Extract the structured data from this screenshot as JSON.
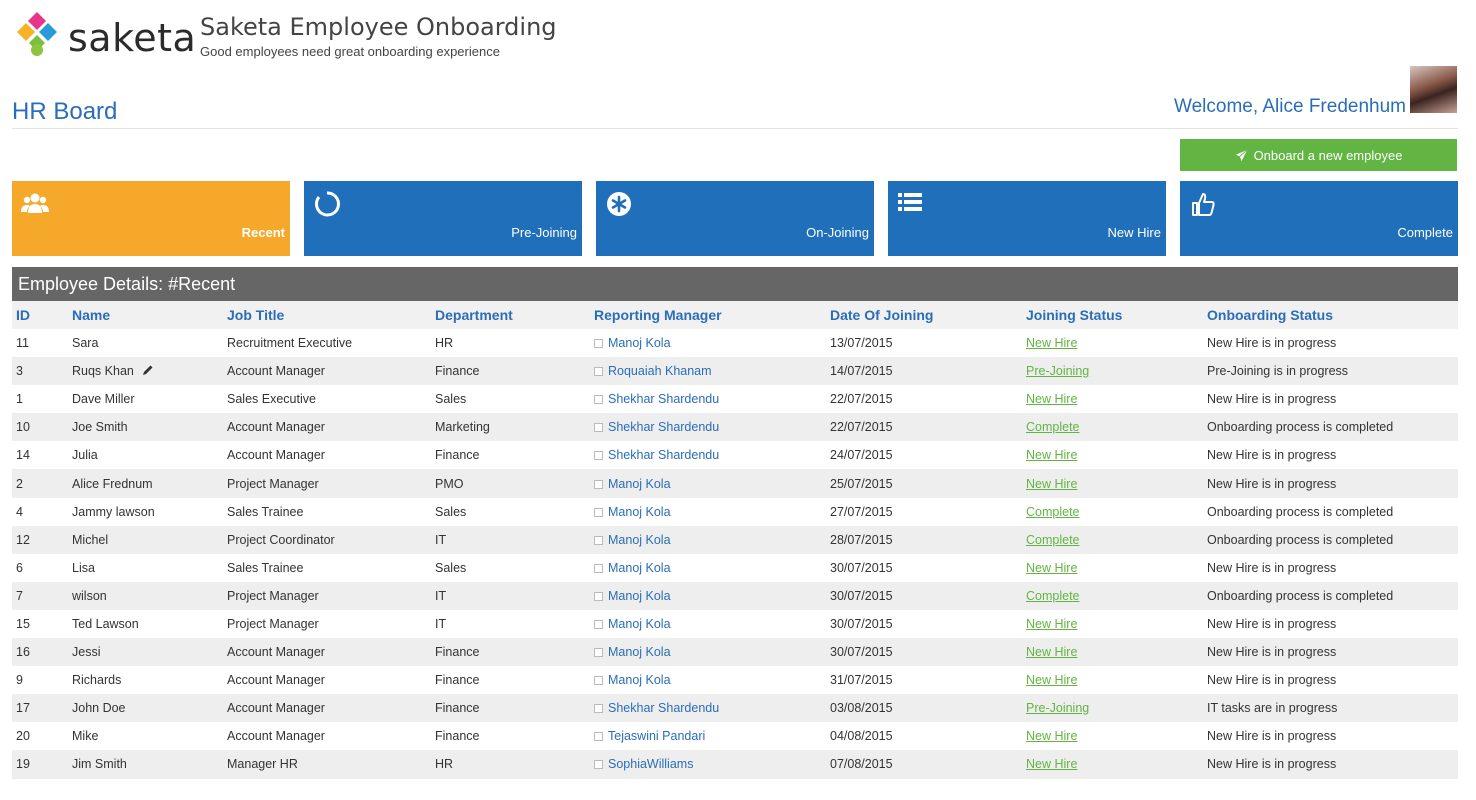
{
  "brand": {
    "logo_text": "saketa",
    "app_title": "Saketa Employee Onboarding",
    "tagline": "Good employees need great onboarding experience"
  },
  "page": {
    "title": "HR Board",
    "welcome": "Welcome, Alice Fredenhum"
  },
  "actions": {
    "onboard_label": "Onboard a new employee"
  },
  "tiles": [
    {
      "label": "Recent",
      "icon": "users-icon",
      "color": "#f6a82b",
      "active": true
    },
    {
      "label": "Pre-Joining",
      "icon": "circle-refresh-icon",
      "color": "#1f6fba",
      "active": false
    },
    {
      "label": "On-Joining",
      "icon": "asterisk-circle-icon",
      "color": "#1f6fba",
      "active": false
    },
    {
      "label": "New Hire",
      "icon": "list-icon",
      "color": "#1f6fba",
      "active": false
    },
    {
      "label": "Complete",
      "icon": "thumbs-up-icon",
      "color": "#1f6fba",
      "active": false
    }
  ],
  "section": {
    "title": "Employee Details: #Recent"
  },
  "table": {
    "columns": [
      "ID",
      "Name",
      "Job Title",
      "Department",
      "Reporting Manager",
      "Date Of Joining",
      "Joining Status",
      "Onboarding Status"
    ],
    "rows": [
      {
        "id": "11",
        "name": "Sara",
        "job": "Recruitment Executive",
        "dept": "HR",
        "manager": "Manoj Kola",
        "date": "13/07/2015",
        "joining": "New Hire",
        "onboarding": "New Hire is in progress"
      },
      {
        "id": "3",
        "name": "Ruqs Khan",
        "job": "Account Manager",
        "dept": "Finance",
        "manager": "Roquaiah Khanam",
        "date": "14/07/2015",
        "joining": "Pre-Joining",
        "onboarding": "Pre-Joining is in progress",
        "edit_icon": true
      },
      {
        "id": "1",
        "name": "Dave Miller",
        "job": "Sales Executive",
        "dept": "Sales",
        "manager": "Shekhar Shardendu",
        "date": "22/07/2015",
        "joining": "New Hire",
        "onboarding": "New Hire is in progress"
      },
      {
        "id": "10",
        "name": "Joe Smith",
        "job": "Account Manager",
        "dept": "Marketing",
        "manager": "Shekhar Shardendu",
        "date": "22/07/2015",
        "joining": "Complete",
        "onboarding": "Onboarding process is completed"
      },
      {
        "id": "14",
        "name": "Julia",
        "job": "Account Manager",
        "dept": "Finance",
        "manager": "Shekhar Shardendu",
        "date": "24/07/2015",
        "joining": "New Hire",
        "onboarding": "New Hire is in progress"
      },
      {
        "id": "2",
        "name": "Alice Frednum",
        "job": "Project Manager",
        "dept": "PMO",
        "manager": "Manoj Kola",
        "date": "25/07/2015",
        "joining": "New Hire",
        "onboarding": "New Hire is in progress"
      },
      {
        "id": "4",
        "name": "Jammy lawson",
        "job": "Sales Trainee",
        "dept": "Sales",
        "manager": "Manoj Kola",
        "date": "27/07/2015",
        "joining": "Complete",
        "onboarding": "Onboarding process is completed"
      },
      {
        "id": "12",
        "name": "Michel",
        "job": "Project Coordinator",
        "dept": "IT",
        "manager": "Manoj Kola",
        "date": "28/07/2015",
        "joining": "Complete",
        "onboarding": "Onboarding process is completed"
      },
      {
        "id": "6",
        "name": "Lisa",
        "job": "Sales Trainee",
        "dept": "Sales",
        "manager": "Manoj Kola",
        "date": "30/07/2015",
        "joining": "New Hire",
        "onboarding": "New Hire is in progress"
      },
      {
        "id": "7",
        "name": "wilson",
        "job": "Project Manager",
        "dept": "IT",
        "manager": "Manoj Kola",
        "date": "30/07/2015",
        "joining": "Complete",
        "onboarding": "Onboarding process is completed"
      },
      {
        "id": "15",
        "name": "Ted Lawson",
        "job": "Project Manager",
        "dept": "IT",
        "manager": "Manoj Kola",
        "date": "30/07/2015",
        "joining": "New Hire",
        "onboarding": "New Hire is in progress"
      },
      {
        "id": "16",
        "name": "Jessi",
        "job": "Account Manager",
        "dept": "Finance",
        "manager": "Manoj Kola",
        "date": "30/07/2015",
        "joining": "New Hire",
        "onboarding": "New Hire is in progress"
      },
      {
        "id": "9",
        "name": "Richards",
        "job": "Account Manager",
        "dept": "Finance",
        "manager": "Manoj Kola",
        "date": "31/07/2015",
        "joining": "New Hire",
        "onboarding": "New Hire is in progress"
      },
      {
        "id": "17",
        "name": "John Doe",
        "job": "Account Manager",
        "dept": "Finance",
        "manager": "Shekhar Shardendu",
        "date": "03/08/2015",
        "joining": "Pre-Joining",
        "onboarding": "IT tasks are in progress"
      },
      {
        "id": "20",
        "name": "Mike",
        "job": "Account Manager",
        "dept": "Finance",
        "manager": "Tejaswini Pandari",
        "date": "04/08/2015",
        "joining": "New Hire",
        "onboarding": "New Hire is in progress"
      },
      {
        "id": "19",
        "name": "Jim Smith",
        "job": "Manager HR",
        "dept": "HR",
        "manager": "SophiaWilliams",
        "date": "07/08/2015",
        "joining": "New Hire",
        "onboarding": "New Hire is in progress"
      }
    ]
  }
}
